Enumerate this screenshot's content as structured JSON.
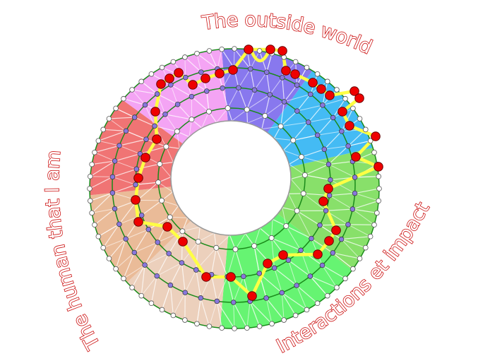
{
  "labels": {
    "top": "The outside world",
    "left": "The human that I am",
    "bottom_right": "Interactions et impact"
  },
  "sectors": [
    {
      "name": "purple",
      "color": "#8878ee"
    },
    {
      "name": "blue",
      "color": "#44bbf4"
    },
    {
      "name": "green",
      "color": "#88e06a"
    },
    {
      "name": "bright-green",
      "color": "#66f472"
    },
    {
      "name": "light-tan",
      "color": "#ecd0bc"
    },
    {
      "name": "tan",
      "color": "#eabb98"
    },
    {
      "name": "red",
      "color": "#f07474"
    },
    {
      "name": "pink",
      "color": "#f4a4f4"
    }
  ],
  "colors": {
    "ring": "#1a8a1a",
    "path": "#ffff44",
    "path_node": "#ee0000",
    "mesh_node_purple": "#8877dd",
    "mesh_node_white": "#ffffff",
    "label_outline": "#cc1111"
  }
}
